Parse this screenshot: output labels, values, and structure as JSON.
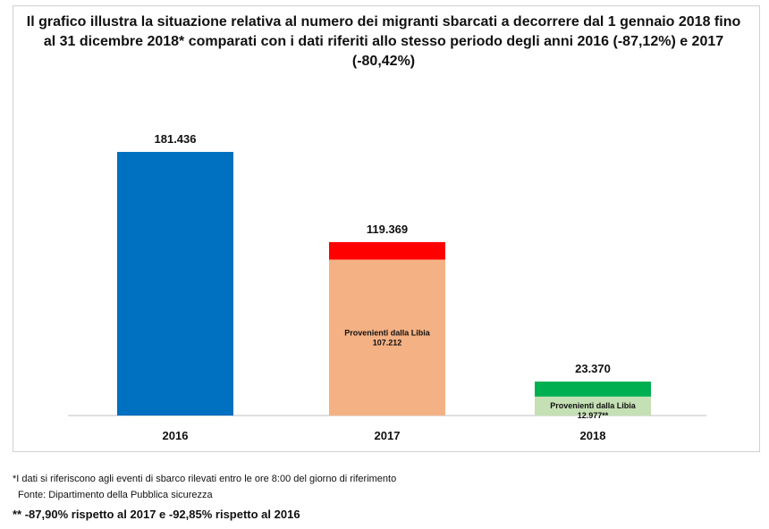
{
  "chart_data": {
    "type": "bar",
    "title": "Il grafico illustra la situazione relativa al numero dei migranti sbarcati a decorrere dal 1 gennaio 2018 fino al 31 dicembre 2018* comparati con i dati riferiti allo stesso periodo degli anni 2016 (-87,12%) e 2017 (-80,42%)",
    "categories": [
      "2016",
      "2017",
      "2018"
    ],
    "totals": [
      181436,
      119369,
      23370
    ],
    "total_labels": [
      "181.436",
      "119.369",
      "23.370"
    ],
    "segment_labels": [
      "",
      "Provenienti dalla Libia\n107.212",
      "Provenienti dalla Libia\n12.977**"
    ],
    "libia_values": [
      null,
      107212,
      12977
    ],
    "colors": {
      "2016": "#0070C0",
      "2017_other": "#FF0000",
      "2017_libia": "#F4B183",
      "2018_other": "#00B050",
      "2018_libia": "#C5E0B4"
    },
    "ylim": [
      0,
      181436
    ],
    "grid": false,
    "legend": "none"
  },
  "footnotes": {
    "note": "*I dati si riferiscono agli eventi di sbarco rilevati entro le ore 8:00 del giorno di riferimento",
    "source": "Fonte: Dipartimento della Pubblica sicurezza",
    "comparison": "** -87,90% rispetto al 2017 e -92,85% rispetto al 2016"
  }
}
